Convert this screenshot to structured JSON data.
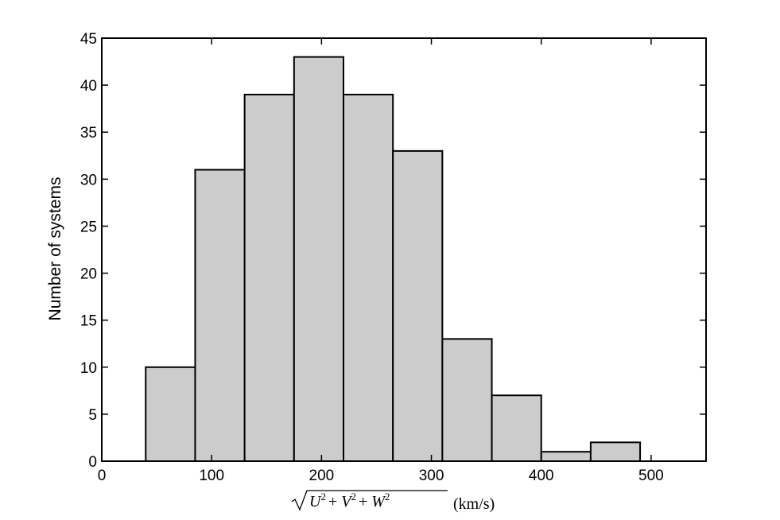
{
  "chart_data": {
    "type": "bar",
    "categories": [
      "40-85",
      "85-130",
      "130-175",
      "175-220",
      "220-265",
      "265-310",
      "310-355",
      "355-400",
      "400-445",
      "445-490"
    ],
    "bin_edges": [
      40,
      85,
      130,
      175,
      220,
      265,
      310,
      355,
      400,
      445,
      490
    ],
    "values": [
      10,
      31,
      39,
      43,
      39,
      33,
      13,
      7,
      1,
      2
    ],
    "title": "",
    "xlabel": "√(U² + V² + W²) (km/s)",
    "ylabel": "Number of systems",
    "xlim": [
      0,
      550
    ],
    "ylim": [
      0,
      45
    ],
    "xticks": [
      0,
      100,
      200,
      300,
      400,
      500
    ],
    "yticks": [
      0,
      5,
      10,
      15,
      20,
      25,
      30,
      35,
      40,
      45
    ],
    "bar_color": "#cccccc",
    "edge_color": "#000000",
    "grid": false,
    "legend": "none"
  }
}
